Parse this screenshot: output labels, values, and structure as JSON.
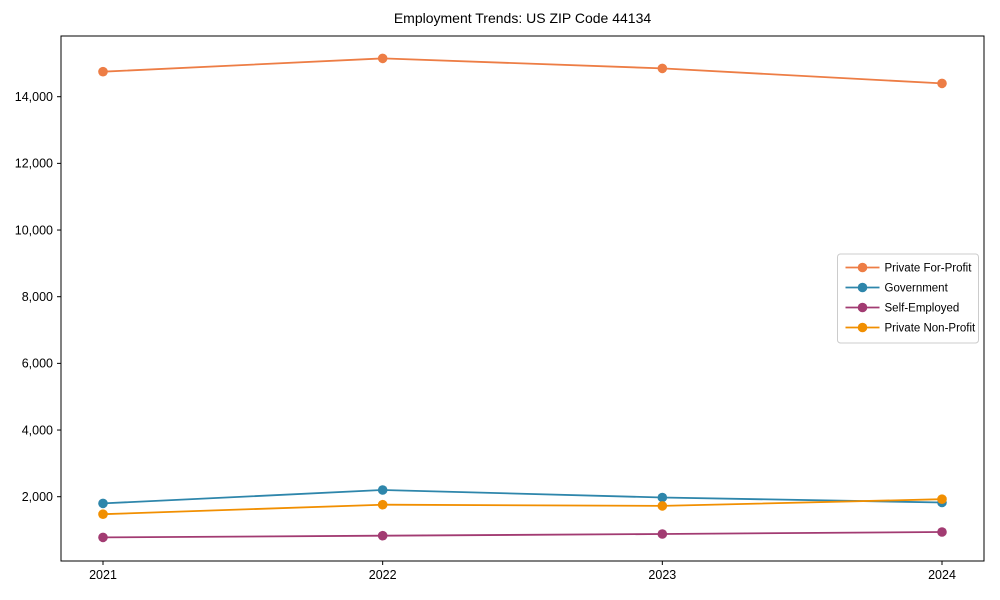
{
  "chart_data": {
    "type": "line",
    "title": "Employment Trends: US ZIP Code 44134",
    "categories": [
      "2021",
      "2022",
      "2023",
      "2024"
    ],
    "series": [
      {
        "name": "Private For-Profit",
        "color": "#ED7D45",
        "values": [
          14750,
          15150,
          14850,
          14400
        ]
      },
      {
        "name": "Government",
        "color": "#2E86AB",
        "values": [
          1800,
          2200,
          1975,
          1825
        ]
      },
      {
        "name": "Self-Employed",
        "color": "#A23B72",
        "values": [
          780,
          830,
          880,
          940
        ]
      },
      {
        "name": "Private Non-Profit",
        "color": "#F18F01",
        "values": [
          1475,
          1760,
          1725,
          1925
        ]
      }
    ],
    "xlabel": "",
    "ylabel": "",
    "yticks": [
      2000,
      4000,
      6000,
      8000,
      10000,
      12000,
      14000
    ],
    "ylim": [
      71,
      15821
    ],
    "grid": false,
    "marker": "o",
    "legend_position": "center right",
    "legend_border_color": "#cccccc",
    "axis_color": "#000000",
    "background_color": "#ffffff"
  }
}
